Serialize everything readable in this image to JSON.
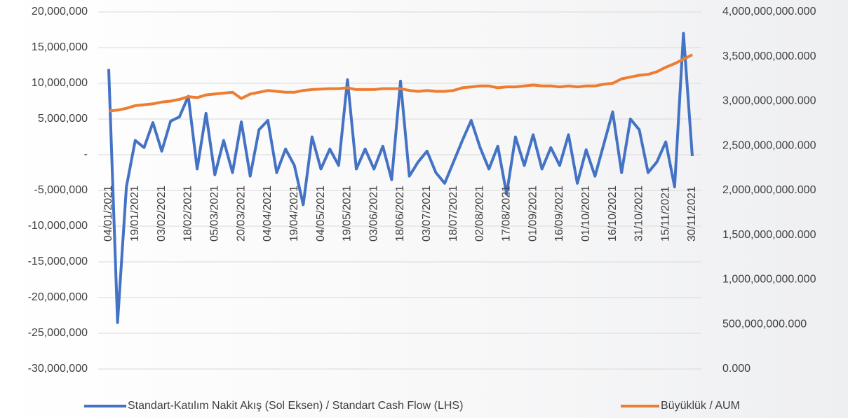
{
  "chart_data": {
    "type": "line",
    "categories": [
      "04/01/2021",
      null,
      null,
      "19/01/2021",
      null,
      null,
      "03/02/2021",
      null,
      null,
      "18/02/2021",
      null,
      null,
      "05/03/2021",
      null,
      null,
      "20/03/2021",
      null,
      null,
      "04/04/2021",
      null,
      null,
      "19/04/2021",
      null,
      null,
      "04/05/2021",
      null,
      null,
      "19/05/2021",
      null,
      null,
      "03/06/2021",
      null,
      null,
      "18/06/2021",
      null,
      null,
      "03/07/2021",
      null,
      null,
      "18/07/2021",
      null,
      null,
      "02/08/2021",
      null,
      null,
      "17/08/2021",
      null,
      null,
      "01/09/2021",
      null,
      null,
      "16/09/2021",
      null,
      null,
      "01/10/2021",
      null,
      null,
      "16/10/2021",
      null,
      null,
      "31/10/2021",
      null,
      null,
      "15/11/2021",
      null,
      null,
      "30/11/2021"
    ],
    "series": [
      {
        "name": "Standart-Katılım Nakit Akış (Sol Eksen) / Standart Cash Flow (LHS)",
        "color": "#4472c4",
        "axis": "y",
        "values": [
          12000000,
          -23500000,
          -4500000,
          2000000,
          1000000,
          4500000,
          500000,
          4700000,
          5300000,
          8200000,
          -2000000,
          5800000,
          -2800000,
          2000000,
          -2500000,
          4600000,
          -3000000,
          3500000,
          4800000,
          -2500000,
          800000,
          -1500000,
          -7000000,
          2500000,
          -2000000,
          800000,
          -1500000,
          10500000,
          -2000000,
          800000,
          -2000000,
          1200000,
          -3500000,
          10300000,
          -3000000,
          -1000000,
          500000,
          -2500000,
          -4000000,
          -1000000,
          2000000,
          4800000,
          1000000,
          -2000000,
          1200000,
          -5500000,
          2500000,
          -1500000,
          2800000,
          -2000000,
          1000000,
          -1500000,
          2800000,
          -4000000,
          700000,
          -3000000,
          1500000,
          6000000,
          -2500000,
          5000000,
          3500000,
          -2500000,
          -1000000,
          1800000,
          -4500000,
          17000000,
          -200000
        ]
      },
      {
        "name": "Büyüklük / AUM",
        "color": "#ed7d31",
        "axis": "y2",
        "values": [
          2890000000,
          2900000000,
          2920000000,
          2950000000,
          2960000000,
          2970000000,
          2990000000,
          3000000000,
          3020000000,
          3050000000,
          3040000000,
          3070000000,
          3080000000,
          3090000000,
          3100000000,
          3030000000,
          3080000000,
          3100000000,
          3120000000,
          3110000000,
          3100000000,
          3100000000,
          3120000000,
          3130000000,
          3135000000,
          3140000000,
          3140000000,
          3150000000,
          3130000000,
          3130000000,
          3130000000,
          3140000000,
          3140000000,
          3140000000,
          3120000000,
          3110000000,
          3120000000,
          3110000000,
          3110000000,
          3120000000,
          3150000000,
          3160000000,
          3170000000,
          3170000000,
          3150000000,
          3160000000,
          3160000000,
          3170000000,
          3180000000,
          3170000000,
          3170000000,
          3160000000,
          3170000000,
          3160000000,
          3170000000,
          3170000000,
          3190000000,
          3200000000,
          3250000000,
          3270000000,
          3290000000,
          3300000000,
          3330000000,
          3380000000,
          3420000000,
          3470000000,
          3520000000
        ]
      }
    ],
    "ylim": [
      -30000000,
      20000000
    ],
    "yticks": [
      {
        "value": -30000000,
        "label": "-30,000,000"
      },
      {
        "value": -25000000,
        "label": "-25,000,000"
      },
      {
        "value": -20000000,
        "label": "-20,000,000"
      },
      {
        "value": -15000000,
        "label": "-15,000,000"
      },
      {
        "value": -10000000,
        "label": "-10,000,000"
      },
      {
        "value": -5000000,
        "label": "-5,000,000"
      },
      {
        "value": 0,
        "label": "-"
      },
      {
        "value": 5000000,
        "label": "5,000,000"
      },
      {
        "value": 10000000,
        "label": "10,000,000"
      },
      {
        "value": 15000000,
        "label": "15,000,000"
      },
      {
        "value": 20000000,
        "label": "20,000,000"
      }
    ],
    "y2lim": [
      0,
      4000000000
    ],
    "y2ticks": [
      {
        "value": 0,
        "label": "0.000"
      },
      {
        "value": 500000000,
        "label": "500,000,000.000"
      },
      {
        "value": 1000000000,
        "label": "1,000,000,000.000"
      },
      {
        "value": 1500000000,
        "label": "1,500,000,000.000"
      },
      {
        "value": 2000000000,
        "label": "2,000,000,000.000"
      },
      {
        "value": 2500000000,
        "label": "2,500,000,000.000"
      },
      {
        "value": 3000000000,
        "label": "3,000,000,000.000"
      },
      {
        "value": 3500000000,
        "label": "3,500,000,000.000"
      },
      {
        "value": 4000000000,
        "label": "4,000,000,000.000"
      }
    ],
    "grid": true,
    "legend": "bottom"
  }
}
